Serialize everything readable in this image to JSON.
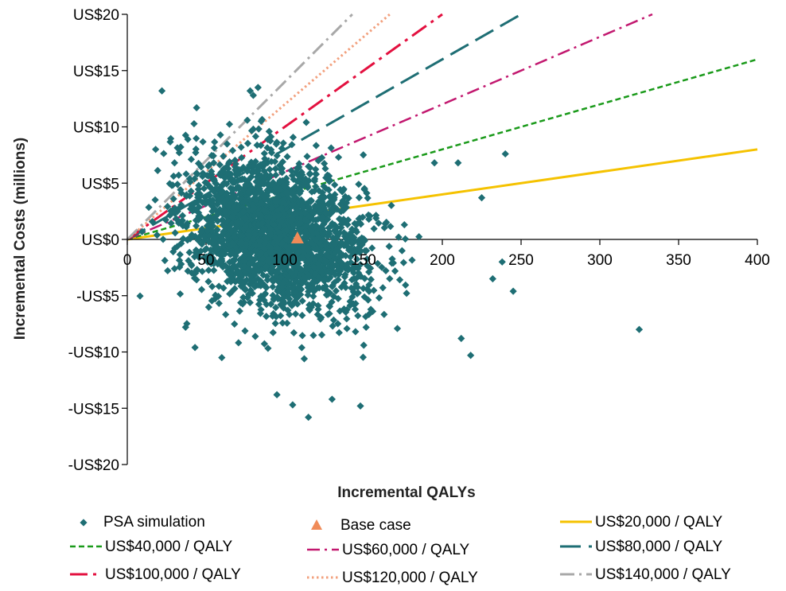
{
  "chart_data": {
    "type": "scatter",
    "title": "",
    "xlabel": "Incremental QALYs",
    "ylabel": "Incremental Costs (millions)",
    "xlim": [
      0,
      400
    ],
    "ylim": [
      -20,
      20
    ],
    "x_ticks": [
      "0",
      "50",
      "100",
      "150",
      "200",
      "250",
      "300",
      "350",
      "400"
    ],
    "x_tick_values": [
      0,
      50,
      100,
      150,
      200,
      250,
      300,
      350,
      400
    ],
    "y_ticks": [
      "US$20",
      "US$15",
      "US$10",
      "US$5",
      "US$0",
      "-US$5",
      "-US$10",
      "-US$15",
      "-US$20"
    ],
    "y_tick_values": [
      20,
      15,
      10,
      5,
      0,
      -5,
      -10,
      -15,
      -20
    ],
    "grid": false,
    "legend_position": "bottom",
    "psa_cloud": {
      "name": "PSA simulation",
      "color": "#1e6e74",
      "marker": "diamond",
      "center": [
        95,
        0.5
      ],
      "spread": [
        28,
        4.2
      ],
      "count": 2600,
      "outliers": [
        [
          22,
          13.2
        ],
        [
          78,
          13.2
        ],
        [
          83,
          13.5
        ],
        [
          80,
          12.8
        ],
        [
          44,
          11.7
        ],
        [
          18,
          8.0
        ],
        [
          240,
          7.6
        ],
        [
          210,
          6.8
        ],
        [
          325,
          -8.0
        ],
        [
          245,
          -4.6
        ],
        [
          115,
          -15.8
        ],
        [
          105,
          -14.7
        ],
        [
          95,
          -13.8
        ],
        [
          130,
          -14.2
        ],
        [
          148,
          -14.8
        ],
        [
          218,
          -10.3
        ],
        [
          212,
          -8.8
        ],
        [
          232,
          -3.5
        ],
        [
          238,
          -2.0
        ],
        [
          30,
          -2.6
        ],
        [
          37,
          -7.8
        ],
        [
          43,
          -9.6
        ],
        [
          60,
          -10.5
        ],
        [
          225,
          3.7
        ],
        [
          195,
          6.8
        ],
        [
          85,
          10.5
        ],
        [
          80,
          9.8
        ],
        [
          30,
          6.8
        ]
      ]
    },
    "base_case": {
      "name": "Base case",
      "x": 108,
      "y": 0,
      "color": "#f08b58"
    },
    "thresholds": [
      {
        "name": "US$20,000 / QALY",
        "wtp": 0.02,
        "color": "#f5c200",
        "dash": "solid",
        "width": 3
      },
      {
        "name": "US$40,000 / QALY",
        "wtp": 0.04,
        "color": "#1a9a1a",
        "dash": "7,4",
        "width": 2.5
      },
      {
        "name": "US$60,000 / QALY",
        "wtp": 0.06,
        "color": "#c2186f",
        "dash": "16,6,3,6",
        "width": 2.5
      },
      {
        "name": "US$80,000 / QALY",
        "wtp": 0.08,
        "color": "#1e6e74",
        "dash": "26,10",
        "width": 3
      },
      {
        "name": "US$100,000 / QALY",
        "wtp": 0.1,
        "color": "#e3103f",
        "dash": "22,7,4,7",
        "width": 3
      },
      {
        "name": "US$120,000 / QALY",
        "wtp": 0.12,
        "color": "#f2a07d",
        "dash": "2.5,3.5",
        "width": 3
      },
      {
        "name": "US$140,000 / QALY",
        "wtp": 0.14,
        "color": "#a8a8a8",
        "dash": "18,6,3,6",
        "width": 3
      }
    ]
  }
}
